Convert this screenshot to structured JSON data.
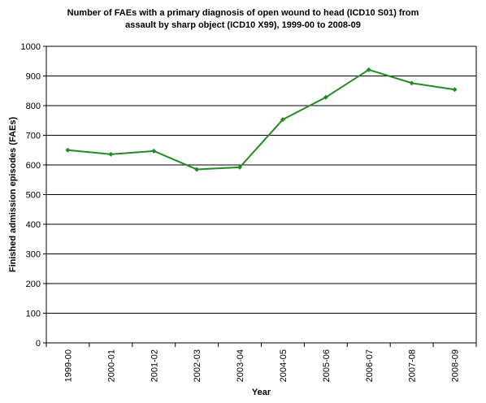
{
  "chart_data": {
    "type": "line",
    "title_lines": [
      "Number of FAEs with a primary diagnosis of open wound to head (ICD10 S01) from",
      "assault by sharp object (ICD10 X99), 1999-00 to 2008-09"
    ],
    "xlabel": "Year",
    "ylabel": "Finished admission episodes (FAEs)",
    "categories": [
      "1999-00",
      "2000-01",
      "2001-02",
      "2002-03",
      "2003-04",
      "2004-05",
      "2005-06",
      "2006-07",
      "2007-08",
      "2008-09"
    ],
    "series": [
      {
        "values": [
          650,
          636,
          647,
          585,
          592,
          753,
          828,
          921,
          876,
          854
        ],
        "color": "#228B22"
      }
    ],
    "ylim": [
      0,
      1000
    ],
    "yticks": [
      0,
      100,
      200,
      300,
      400,
      500,
      600,
      700,
      800,
      900,
      1000
    ],
    "grid": true,
    "legend": "none"
  }
}
